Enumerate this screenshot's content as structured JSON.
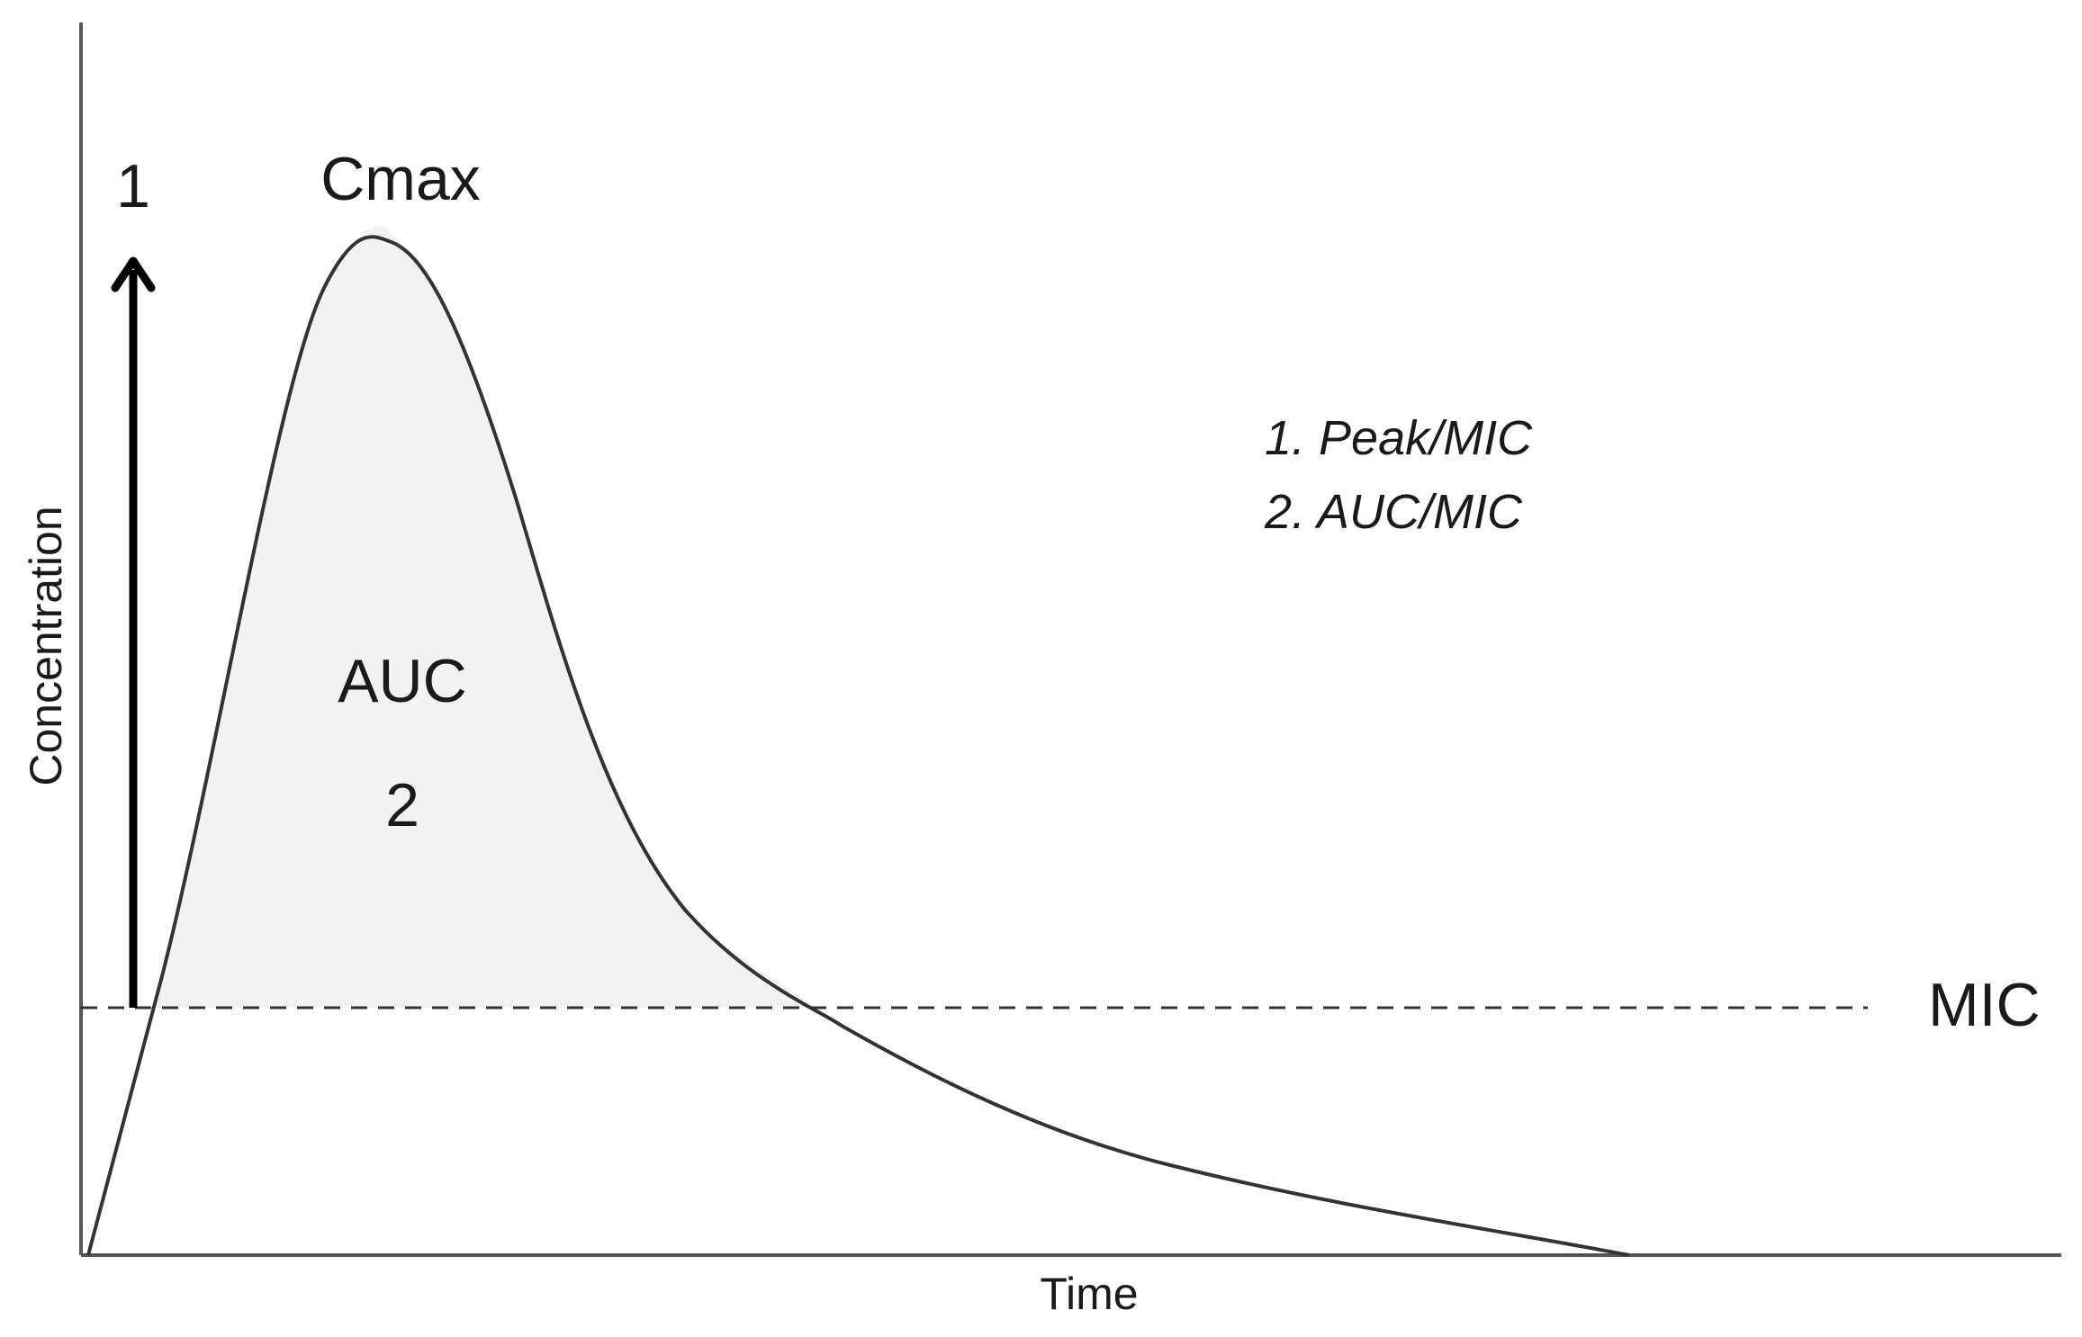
{
  "diagram": {
    "x_axis_label": "Time",
    "y_axis_label": "Concentration",
    "peak_label": "Cmax",
    "area_label": "AUC",
    "area_marker": "2",
    "arrow_marker": "1",
    "threshold_label": "MIC",
    "legend": [
      "1. Peak/MIC",
      "2. AUC/MIC"
    ],
    "colors": {
      "curve": "#333333",
      "area_fill": "#f2f2f2",
      "axis": "#555555",
      "arrow": "#000000"
    }
  }
}
